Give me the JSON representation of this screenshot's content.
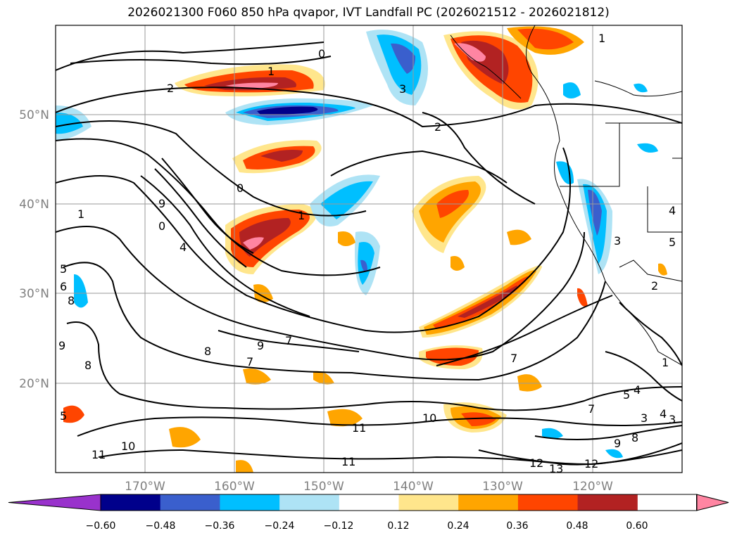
{
  "title": "2026021300 F060 850 hPa qvapor, IVT Landfall PC (2026021512 - 2026021812)",
  "map": {
    "lon_labels": [
      "170°W",
      "160°W",
      "150°W",
      "140°W",
      "130°W",
      "120°W"
    ],
    "lat_labels": [
      "50°N",
      "40°N",
      "30°N",
      "20°N"
    ],
    "contour_labels": [
      {
        "text": "0"
      },
      {
        "text": "1"
      },
      {
        "text": "2"
      },
      {
        "text": "3"
      },
      {
        "text": "2"
      },
      {
        "text": "1"
      },
      {
        "text": "1"
      },
      {
        "text": "1"
      },
      {
        "text": "0"
      },
      {
        "text": "9"
      },
      {
        "text": "0"
      },
      {
        "text": "4"
      },
      {
        "text": "7"
      },
      {
        "text": "5"
      },
      {
        "text": "6"
      },
      {
        "text": "8"
      },
      {
        "text": "9"
      },
      {
        "text": "8"
      },
      {
        "text": "9"
      },
      {
        "text": "8"
      },
      {
        "text": "7"
      },
      {
        "text": "7"
      },
      {
        "text": "10"
      },
      {
        "text": "11"
      },
      {
        "text": "11"
      },
      {
        "text": "10"
      },
      {
        "text": "11"
      },
      {
        "text": "12"
      },
      {
        "text": "13"
      },
      {
        "text": "12"
      },
      {
        "text": "9"
      },
      {
        "text": "8"
      },
      {
        "text": "7"
      },
      {
        "text": "5"
      },
      {
        "text": "4"
      },
      {
        "text": "3"
      },
      {
        "text": "4"
      },
      {
        "text": "3"
      },
      {
        "text": "4"
      },
      {
        "text": "5"
      },
      {
        "text": "3"
      },
      {
        "text": "2"
      },
      {
        "text": "1"
      },
      {
        "text": "5"
      }
    ]
  },
  "colorbar": {
    "tick_labels": [
      "−0.60",
      "−0.48",
      "−0.36",
      "−0.24",
      "−0.12",
      "0.12",
      "0.24",
      "0.36",
      "0.48",
      "0.60"
    ],
    "colors": [
      "#9932CC",
      "#00008B",
      "#3A5FCD",
      "#00BFFF",
      "#AEE3F5",
      "#FFFFFF",
      "#FFE68C",
      "#FFA500",
      "#FF4500",
      "#B22222",
      "#FF85A2"
    ]
  }
}
